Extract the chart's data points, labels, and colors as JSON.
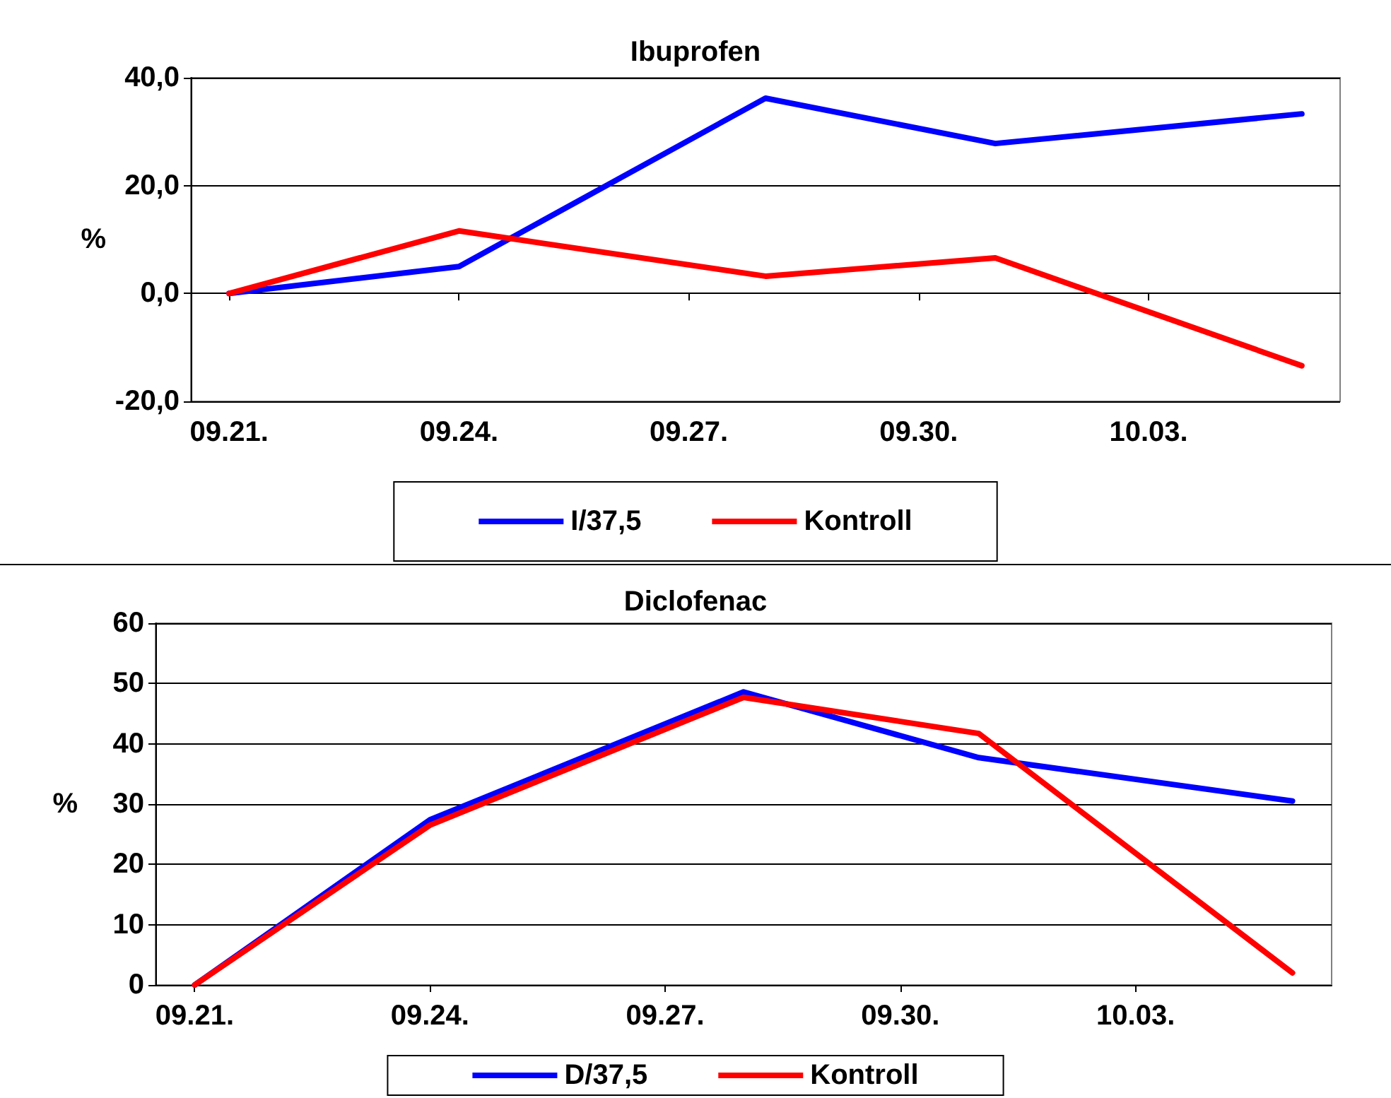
{
  "chart_data": [
    {
      "type": "line",
      "title": "Ibuprofen",
      "ylabel": "%",
      "x": [
        "--09-21",
        "--09-24",
        "--09-28",
        "--10-01",
        "--10-05"
      ],
      "xlim": [
        "--09-20T12:00",
        "--10-05T12:00"
      ],
      "xticks": [
        {
          "value": "--09-21",
          "label": "09.21."
        },
        {
          "value": "--09-24",
          "label": "09.24."
        },
        {
          "value": "--09-27",
          "label": "09.27."
        },
        {
          "value": "--09-30",
          "label": "09.30."
        },
        {
          "value": "--10-03",
          "label": "10.03."
        }
      ],
      "ylim": [
        -20,
        40
      ],
      "yticks": [
        {
          "value": -20,
          "label": "-20,0"
        },
        {
          "value": 0,
          "label": "0,0"
        },
        {
          "value": 20,
          "label": "20,0"
        },
        {
          "value": 40,
          "label": "40,0"
        }
      ],
      "series": [
        {
          "name": "I/37,5",
          "color": "#0000ff",
          "values": [
            0,
            5,
            36.2,
            27.8,
            33.3
          ]
        },
        {
          "name": "Kontroll",
          "color": "#ff0000",
          "values": [
            0,
            11.6,
            3.2,
            6.6,
            -13.4
          ]
        }
      ],
      "grid": "y",
      "legend": "bottom",
      "marker": "none",
      "line_style": "solid"
    },
    {
      "type": "line",
      "title": "Diclofenac",
      "ylabel": "%",
      "x": [
        "--09-21",
        "--09-24",
        "--09-28",
        "--10-01",
        "--10-05"
      ],
      "xlim": [
        "--09-20T12:00",
        "--10-05T12:00"
      ],
      "xticks": [
        {
          "value": "--09-21",
          "label": "09.21."
        },
        {
          "value": "--09-24",
          "label": "09.24."
        },
        {
          "value": "--09-27",
          "label": "09.27."
        },
        {
          "value": "--09-30",
          "label": "09.30."
        },
        {
          "value": "--10-03",
          "label": "10.03."
        }
      ],
      "ylim": [
        0,
        60
      ],
      "yticks": [
        0,
        10,
        20,
        30,
        40,
        50,
        60
      ],
      "series": [
        {
          "name": "D/37,5",
          "color": "#0000ff",
          "values": [
            0,
            27.4,
            48.6,
            37.7,
            30.5
          ]
        },
        {
          "name": "Kontroll",
          "color": "#ff0000",
          "values": [
            0,
            26.5,
            47.7,
            41.7,
            2
          ]
        }
      ],
      "grid": "y",
      "legend": "bottom",
      "marker": "none",
      "line_style": "solid"
    }
  ]
}
